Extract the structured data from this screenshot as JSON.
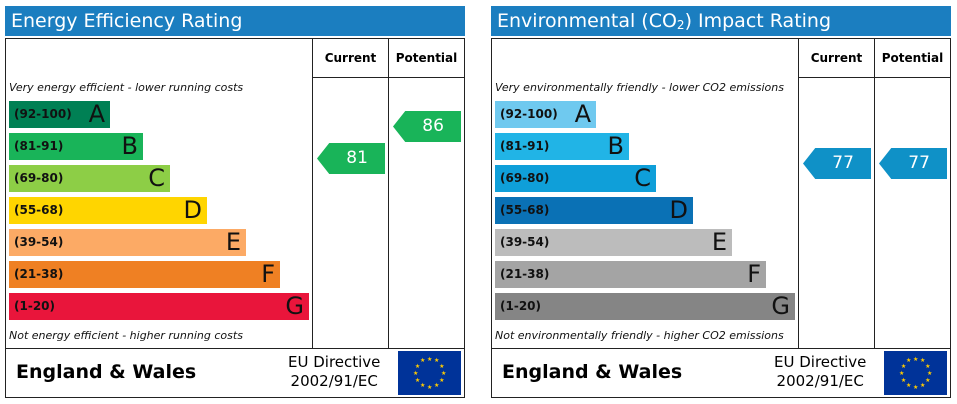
{
  "energy": {
    "title": "Energy Efficiency Rating",
    "col_current": "Current",
    "col_potential": "Potential",
    "top_note": "Very energy efficient - lower running costs",
    "bottom_note": "Not energy efficient - higher running costs",
    "bands": [
      {
        "range": "(92-100)",
        "letter": "A",
        "color": "#008054"
      },
      {
        "range": "(81-91)",
        "letter": "B",
        "color": "#19b459"
      },
      {
        "range": "(69-80)",
        "letter": "C",
        "color": "#8dce46"
      },
      {
        "range": "(55-68)",
        "letter": "D",
        "color": "#ffd500"
      },
      {
        "range": "(39-54)",
        "letter": "E",
        "color": "#fcaa65"
      },
      {
        "range": "(21-38)",
        "letter": "F",
        "color": "#ef8023"
      },
      {
        "range": "(1-20)",
        "letter": "G",
        "color": "#e9153b"
      }
    ],
    "current": {
      "value": "81",
      "band": "B",
      "color": "#19b459"
    },
    "potential": {
      "value": "86",
      "band": "B",
      "color": "#19b459"
    },
    "country": "England & Wales",
    "directive_line1": "EU Directive",
    "directive_line2": "2002/91/EC"
  },
  "environmental": {
    "title_prefix": "Environmental (CO",
    "title_sub": "2",
    "title_suffix": ") Impact Rating",
    "col_current": "Current",
    "col_potential": "Potential",
    "top_note": "Very environmentally friendly - lower CO2 emissions",
    "bottom_note": "Not environmentally friendly - higher CO2 emissions",
    "bands": [
      {
        "range": "(92-100)",
        "letter": "A",
        "color": "#6fc9ef"
      },
      {
        "range": "(81-91)",
        "letter": "B",
        "color": "#21b4e6"
      },
      {
        "range": "(69-80)",
        "letter": "C",
        "color": "#0f9fd9"
      },
      {
        "range": "(55-68)",
        "letter": "D",
        "color": "#0a71b5"
      },
      {
        "range": "(39-54)",
        "letter": "E",
        "color": "#bcbcbc"
      },
      {
        "range": "(21-38)",
        "letter": "F",
        "color": "#a4a4a4"
      },
      {
        "range": "(1-20)",
        "letter": "G",
        "color": "#858585"
      }
    ],
    "current": {
      "value": "77",
      "band": "C",
      "color": "#0f91c7"
    },
    "potential": {
      "value": "77",
      "band": "C",
      "color": "#0f91c7"
    },
    "country": "England & Wales",
    "directive_line1": "EU Directive",
    "directive_line2": "2002/91/EC"
  }
}
